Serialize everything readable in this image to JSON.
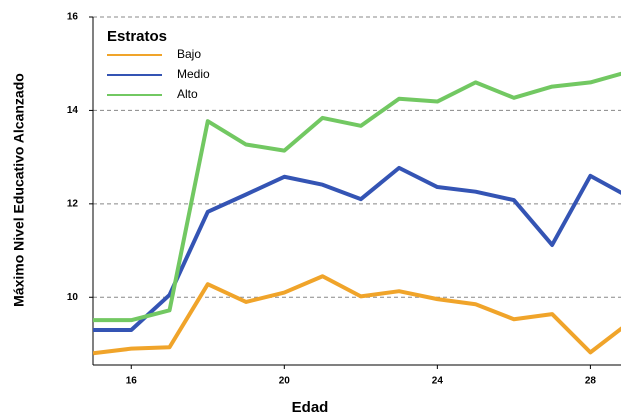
{
  "chart_data": {
    "type": "line",
    "x_label": "Edad",
    "y_label": "Máximo Nivel Educativo Alcanzado",
    "legend_title": "Estratos",
    "legend": "upper left",
    "grid": true,
    "x": [
      15,
      16,
      17,
      18,
      19,
      20,
      21,
      22,
      23,
      24,
      25,
      26,
      27,
      28,
      29
    ],
    "xlim": [
      15,
      28.8
    ],
    "xticks": [
      16,
      20,
      24,
      28
    ],
    "ylim": [
      8.55,
      16
    ],
    "yticks": [
      10,
      12,
      14,
      16
    ],
    "series": [
      {
        "name": "Bajo",
        "color": "#f0a42a",
        "values": [
          8.8,
          8.9,
          8.93,
          10.28,
          9.9,
          10.1,
          10.45,
          10.02,
          10.13,
          9.96,
          9.85,
          9.53,
          9.64,
          8.82,
          9.45
        ]
      },
      {
        "name": "Medio",
        "color": "#3454b4",
        "values": [
          9.3,
          9.3,
          10.05,
          11.83,
          12.2,
          12.58,
          12.41,
          12.1,
          12.77,
          12.36,
          12.26,
          12.08,
          11.12,
          12.6,
          12.15
        ]
      },
      {
        "name": "Alto",
        "color": "#72c862",
        "values": [
          9.51,
          9.51,
          9.72,
          13.77,
          13.27,
          13.14,
          13.84,
          13.67,
          14.25,
          14.19,
          14.6,
          14.27,
          14.51,
          14.6,
          14.83
        ]
      }
    ]
  }
}
